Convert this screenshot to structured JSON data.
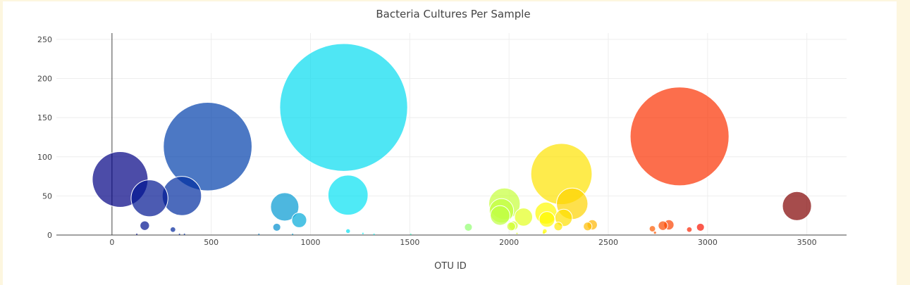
{
  "colors": {
    "background": "#fdf6df",
    "panel": "#ffffff",
    "grid": "#eeeeee",
    "axis": "#444444"
  },
  "chart_data": {
    "type": "scatter",
    "title": "Bacteria Cultures Per Sample",
    "xlabel": "OTU ID",
    "ylabel": "",
    "xlim": [
      -280,
      3700
    ],
    "ylim": [
      0,
      258
    ],
    "x_ticks": [
      "0",
      "500",
      "1000",
      "1500",
      "2000",
      "2500",
      "3000",
      "3500"
    ],
    "y_ticks": [
      "0",
      "50",
      "100",
      "150",
      "200",
      "250"
    ],
    "grid": true,
    "legend": "none",
    "colorscale": "Jet",
    "points": [
      {
        "x": 41,
        "y": 71,
        "size": 71
      },
      {
        "x": 189,
        "y": 47,
        "size": 47
      },
      {
        "x": 352,
        "y": 50,
        "size": 50
      },
      {
        "x": 482,
        "y": 113,
        "size": 113
      },
      {
        "x": 165,
        "y": 12,
        "size": 12
      },
      {
        "x": 307,
        "y": 7,
        "size": 7
      },
      {
        "x": 870,
        "y": 36,
        "size": 36
      },
      {
        "x": 943,
        "y": 19,
        "size": 19
      },
      {
        "x": 830,
        "y": 10,
        "size": 10
      },
      {
        "x": 1167,
        "y": 163,
        "size": 163
      },
      {
        "x": 1189,
        "y": 51,
        "size": 51
      },
      {
        "x": 1189,
        "y": 5,
        "size": 5
      },
      {
        "x": 1795,
        "y": 10,
        "size": 10
      },
      {
        "x": 1977,
        "y": 40,
        "size": 40
      },
      {
        "x": 1962,
        "y": 31,
        "size": 31
      },
      {
        "x": 1955,
        "y": 25,
        "size": 25
      },
      {
        "x": 2011,
        "y": 11,
        "size": 11
      },
      {
        "x": 2022,
        "y": 12,
        "size": 12
      },
      {
        "x": 2073,
        "y": 23,
        "size": 23
      },
      {
        "x": 2186,
        "y": 28,
        "size": 28
      },
      {
        "x": 2191,
        "y": 20,
        "size": 20
      },
      {
        "x": 2248,
        "y": 11,
        "size": 11
      },
      {
        "x": 2264,
        "y": 78,
        "size": 78
      },
      {
        "x": 2275,
        "y": 22,
        "size": 22
      },
      {
        "x": 2318,
        "y": 40,
        "size": 40
      },
      {
        "x": 2396,
        "y": 11,
        "size": 11
      },
      {
        "x": 2419,
        "y": 13,
        "size": 13
      },
      {
        "x": 2722,
        "y": 8,
        "size": 8
      },
      {
        "x": 2775,
        "y": 12,
        "size": 12
      },
      {
        "x": 2805,
        "y": 13,
        "size": 13
      },
      {
        "x": 2859,
        "y": 126,
        "size": 126
      },
      {
        "x": 2908,
        "y": 7,
        "size": 7
      },
      {
        "x": 2964,
        "y": 10,
        "size": 10
      },
      {
        "x": 3450,
        "y": 37,
        "size": 37
      },
      {
        "x": 125,
        "y": 1,
        "size": 1
      },
      {
        "x": 340,
        "y": 1,
        "size": 1
      },
      {
        "x": 365,
        "y": 1,
        "size": 1
      },
      {
        "x": 740,
        "y": 1,
        "size": 1
      },
      {
        "x": 910,
        "y": 1,
        "size": 1
      },
      {
        "x": 1264,
        "y": 2,
        "size": 2
      },
      {
        "x": 1320,
        "y": 1,
        "size": 1
      },
      {
        "x": 1505,
        "y": 1,
        "size": 1
      },
      {
        "x": 2040,
        "y": 2,
        "size": 2
      },
      {
        "x": 2175,
        "y": 3,
        "size": 3
      },
      {
        "x": 2180,
        "y": 5,
        "size": 5
      },
      {
        "x": 2735,
        "y": 3,
        "size": 3
      }
    ]
  }
}
